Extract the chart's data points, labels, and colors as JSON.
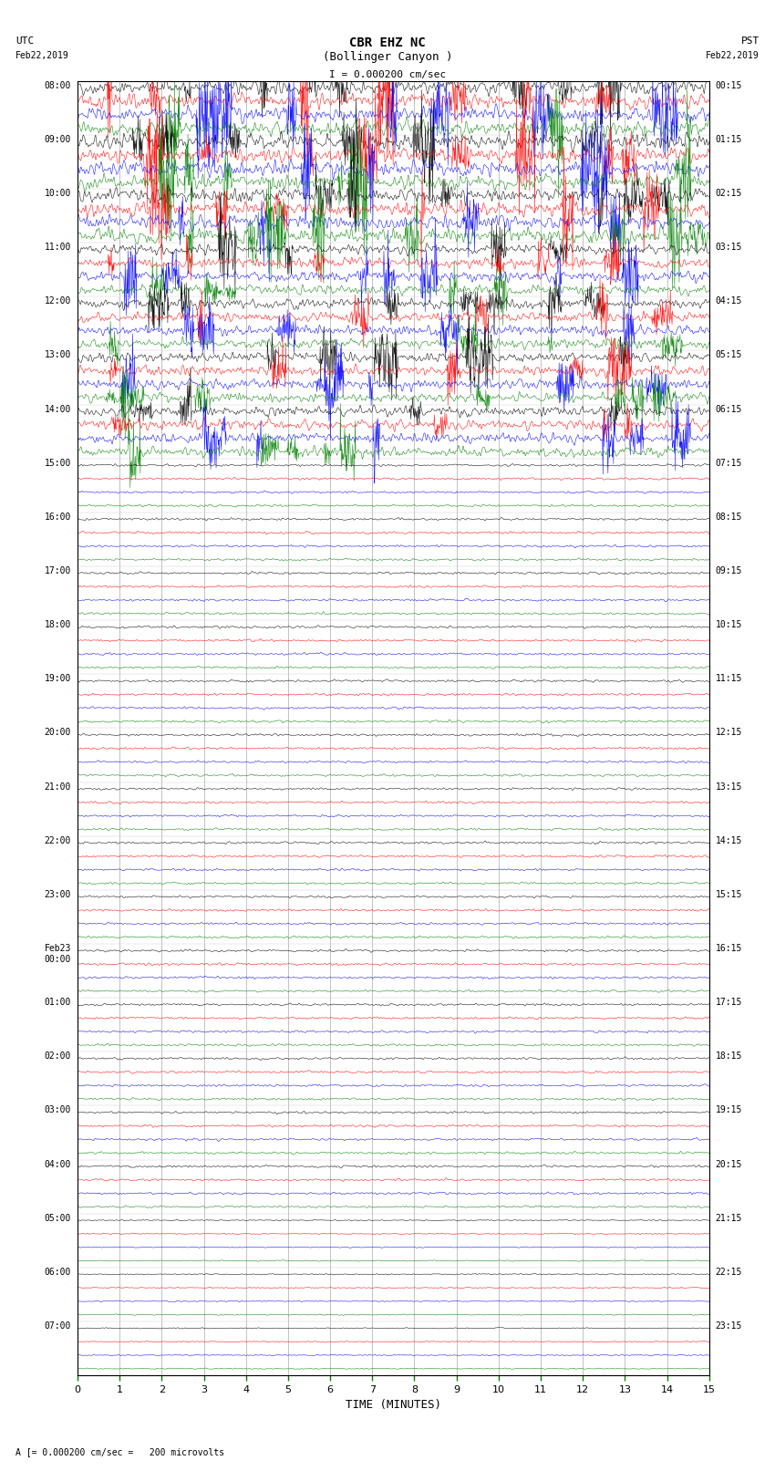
{
  "title_line1": "CBR EHZ NC",
  "title_line2": "(Bollinger Canyon )",
  "scale_label": "= 0.000200 cm/sec",
  "bottom_label": "A [= 0.000200 cm/sec =   200 microvolts",
  "xlabel": "TIME (MINUTES)",
  "utc_label": "UTC\nFeb22,2019",
  "pst_label": "PST\nFeb22,2019",
  "bg_color": "#ffffff",
  "trace_colors": [
    "#000000",
    "#ff0000",
    "#0000ff",
    "#008000"
  ],
  "left_labels": [
    "08:00",
    "09:00",
    "10:00",
    "11:00",
    "12:00",
    "13:00",
    "14:00",
    "15:00",
    "16:00",
    "17:00",
    "18:00",
    "19:00",
    "20:00",
    "21:00",
    "22:00",
    "23:00",
    "Feb23\n00:00",
    "01:00",
    "02:00",
    "03:00",
    "04:00",
    "05:00",
    "06:00",
    "07:00"
  ],
  "right_labels": [
    "00:15",
    "01:15",
    "02:15",
    "03:15",
    "04:15",
    "05:15",
    "06:15",
    "07:15",
    "08:15",
    "09:15",
    "10:15",
    "11:15",
    "12:15",
    "13:15",
    "14:15",
    "15:15",
    "16:15",
    "17:15",
    "18:15",
    "19:15",
    "20:15",
    "21:15",
    "22:15",
    "23:15"
  ],
  "n_rows": 24,
  "traces_per_row": 4,
  "x_min": 0,
  "x_max": 15,
  "noise_rows": 7,
  "noise_amplitude_high": 0.35,
  "noise_amplitude_low": 0.08,
  "grid_color": "#aaaaaa",
  "tick_color": "#008000",
  "samples_per_trace": 1500
}
